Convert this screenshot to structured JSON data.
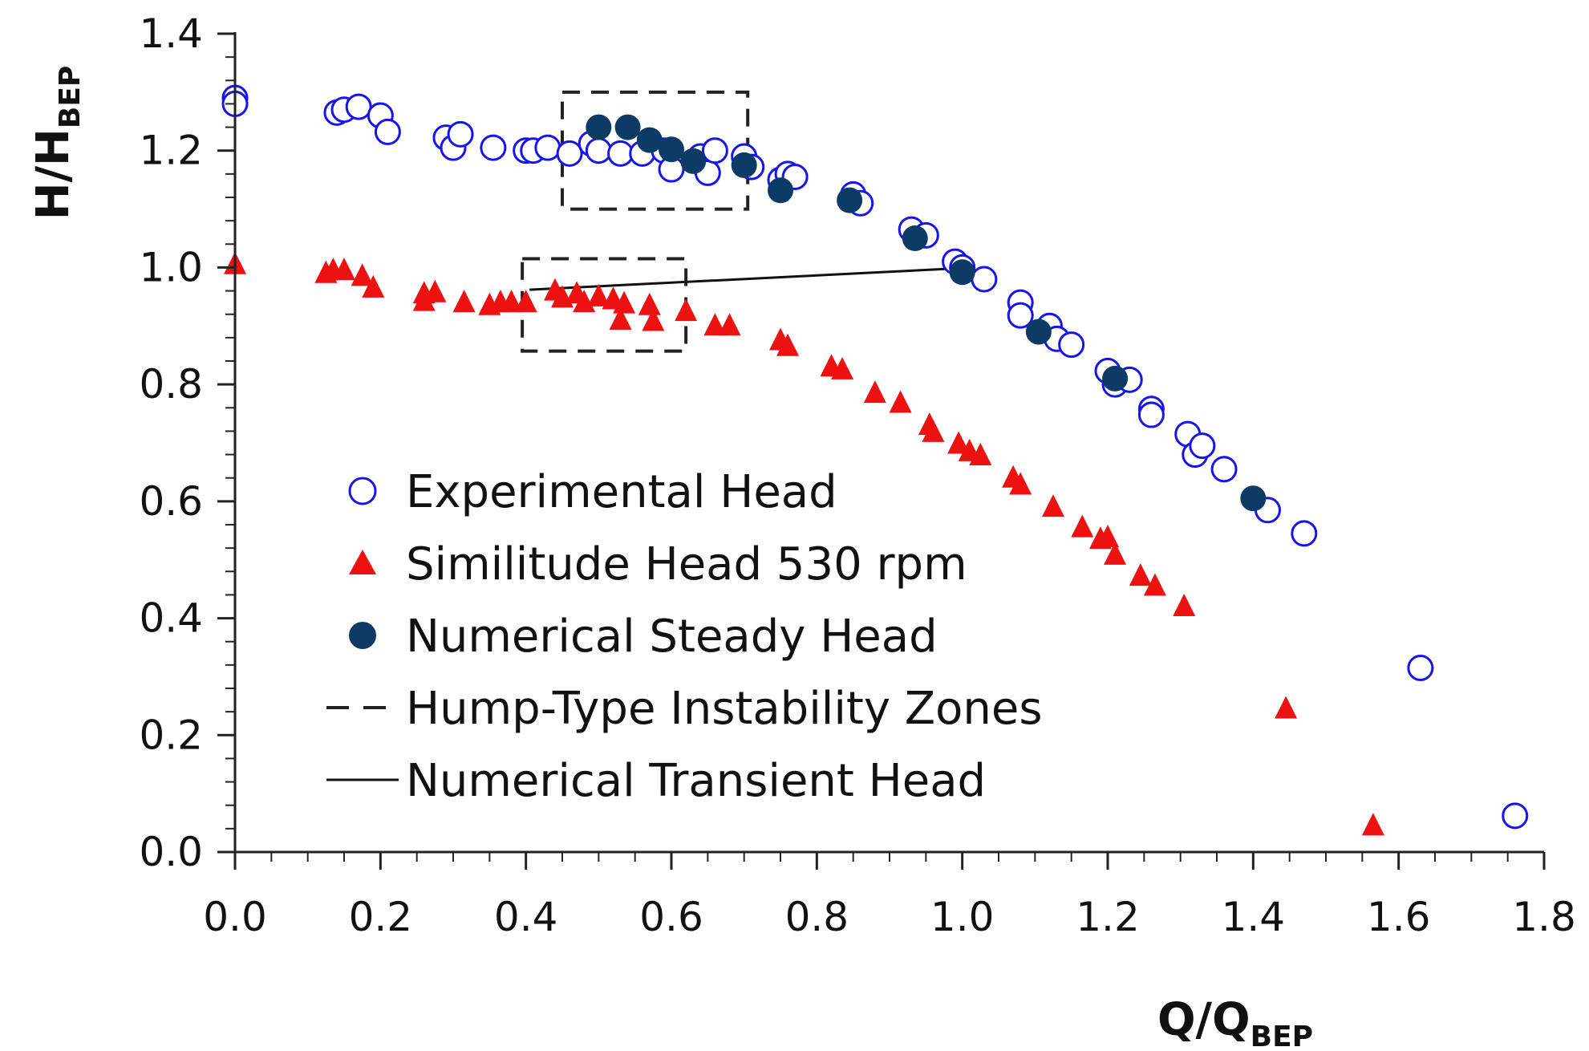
{
  "chart_data": {
    "type": "scatter",
    "title": "",
    "xlabel": {
      "main": "Q/Q",
      "sub": "BEP"
    },
    "ylabel": {
      "main": "H/H",
      "sub": "BEP"
    },
    "xlim": [
      0,
      1.8
    ],
    "ylim": [
      0,
      1.4
    ],
    "x_ticks": [
      "0.0",
      "0.2",
      "0.4",
      "0.6",
      "0.8",
      "1.0",
      "1.2",
      "1.4",
      "1.6",
      "1.8"
    ],
    "y_ticks": [
      "0.0",
      "0.2",
      "0.4",
      "0.6",
      "0.8",
      "1.0",
      "1.2",
      "1.4"
    ],
    "grid": false,
    "legend_position": "center-left",
    "colors": {
      "experimental": "#1414f0",
      "similitude": "#ee1111",
      "numerical_steady": "#0d3b66",
      "axis": "#222222",
      "box": "#222222",
      "transient": "#111111"
    },
    "series": [
      {
        "name": "Experimental Head",
        "marker": "open-circle",
        "points": [
          [
            0.0,
            1.29
          ],
          [
            0.0,
            1.28
          ],
          [
            0.14,
            1.265
          ],
          [
            0.15,
            1.27
          ],
          [
            0.17,
            1.275
          ],
          [
            0.2,
            1.26
          ],
          [
            0.21,
            1.232
          ],
          [
            0.29,
            1.222
          ],
          [
            0.3,
            1.205
          ],
          [
            0.31,
            1.228
          ],
          [
            0.355,
            1.205
          ],
          [
            0.4,
            1.2
          ],
          [
            0.41,
            1.2
          ],
          [
            0.43,
            1.205
          ],
          [
            0.46,
            1.195
          ],
          [
            0.49,
            1.212
          ],
          [
            0.5,
            1.2
          ],
          [
            0.53,
            1.195
          ],
          [
            0.56,
            1.195
          ],
          [
            0.59,
            1.2
          ],
          [
            0.6,
            1.168
          ],
          [
            0.64,
            1.19
          ],
          [
            0.65,
            1.162
          ],
          [
            0.66,
            1.2
          ],
          [
            0.7,
            1.19
          ],
          [
            0.71,
            1.172
          ],
          [
            0.75,
            1.15
          ],
          [
            0.76,
            1.16
          ],
          [
            0.77,
            1.155
          ],
          [
            0.85,
            1.125
          ],
          [
            0.86,
            1.11
          ],
          [
            0.93,
            1.065
          ],
          [
            0.95,
            1.055
          ],
          [
            0.99,
            1.01
          ],
          [
            1.0,
            1.0
          ],
          [
            1.03,
            0.98
          ],
          [
            1.08,
            0.94
          ],
          [
            1.08,
            0.918
          ],
          [
            1.12,
            0.9
          ],
          [
            1.13,
            0.878
          ],
          [
            1.15,
            0.868
          ],
          [
            1.2,
            0.823
          ],
          [
            1.21,
            0.8
          ],
          [
            1.23,
            0.808
          ],
          [
            1.26,
            0.758
          ],
          [
            1.26,
            0.748
          ],
          [
            1.31,
            0.715
          ],
          [
            1.32,
            0.68
          ],
          [
            1.33,
            0.695
          ],
          [
            1.36,
            0.655
          ],
          [
            1.42,
            0.585
          ],
          [
            1.47,
            0.545
          ],
          [
            1.63,
            0.315
          ],
          [
            1.76,
            0.062
          ]
        ]
      },
      {
        "name": "Similitude Head 530 rpm",
        "marker": "filled-triangle",
        "points": [
          [
            0.0,
            1.005
          ],
          [
            0.125,
            0.99
          ],
          [
            0.135,
            0.995
          ],
          [
            0.15,
            0.995
          ],
          [
            0.175,
            0.985
          ],
          [
            0.19,
            0.965
          ],
          [
            0.26,
            0.955
          ],
          [
            0.26,
            0.942
          ],
          [
            0.275,
            0.957
          ],
          [
            0.315,
            0.94
          ],
          [
            0.35,
            0.935
          ],
          [
            0.365,
            0.94
          ],
          [
            0.38,
            0.94
          ],
          [
            0.4,
            0.94
          ],
          [
            0.44,
            0.96
          ],
          [
            0.45,
            0.948
          ],
          [
            0.47,
            0.955
          ],
          [
            0.48,
            0.94
          ],
          [
            0.5,
            0.95
          ],
          [
            0.52,
            0.945
          ],
          [
            0.535,
            0.938
          ],
          [
            0.57,
            0.935
          ],
          [
            0.53,
            0.91
          ],
          [
            0.575,
            0.908
          ],
          [
            0.62,
            0.925
          ],
          [
            0.66,
            0.9
          ],
          [
            0.68,
            0.9
          ],
          [
            0.75,
            0.875
          ],
          [
            0.76,
            0.865
          ],
          [
            0.82,
            0.83
          ],
          [
            0.835,
            0.825
          ],
          [
            0.88,
            0.785
          ],
          [
            0.915,
            0.768
          ],
          [
            0.955,
            0.73
          ],
          [
            0.96,
            0.718
          ],
          [
            0.995,
            0.698
          ],
          [
            1.01,
            0.685
          ],
          [
            1.025,
            0.678
          ],
          [
            1.07,
            0.64
          ],
          [
            1.08,
            0.628
          ],
          [
            1.125,
            0.59
          ],
          [
            1.165,
            0.555
          ],
          [
            1.19,
            0.535
          ],
          [
            1.2,
            0.538
          ],
          [
            1.21,
            0.508
          ],
          [
            1.245,
            0.472
          ],
          [
            1.265,
            0.455
          ],
          [
            1.305,
            0.42
          ],
          [
            1.445,
            0.245
          ],
          [
            1.565,
            0.045
          ]
        ]
      },
      {
        "name": "Numerical Steady Head",
        "marker": "filled-circle",
        "points": [
          [
            0.5,
            1.24
          ],
          [
            0.54,
            1.24
          ],
          [
            0.57,
            1.218
          ],
          [
            0.6,
            1.202
          ],
          [
            0.63,
            1.182
          ],
          [
            0.7,
            1.175
          ],
          [
            0.75,
            1.132
          ],
          [
            0.845,
            1.115
          ],
          [
            0.935,
            1.05
          ],
          [
            1.0,
            0.992
          ],
          [
            1.105,
            0.89
          ],
          [
            1.21,
            0.81
          ],
          [
            1.4,
            0.605
          ]
        ]
      },
      {
        "name": "Hump-Type Instability Zones",
        "marker": "dashed-box",
        "boxes": [
          {
            "x0": 0.45,
            "x1": 0.705,
            "y0": 1.1,
            "y1": 1.3
          },
          {
            "x0": 0.395,
            "x1": 0.62,
            "y0": 0.857,
            "y1": 1.015
          }
        ]
      },
      {
        "name": "Numerical Transient Head",
        "marker": "line",
        "points": [
          [
            0.405,
            0.962
          ],
          [
            0.985,
            0.998
          ]
        ]
      }
    ]
  }
}
